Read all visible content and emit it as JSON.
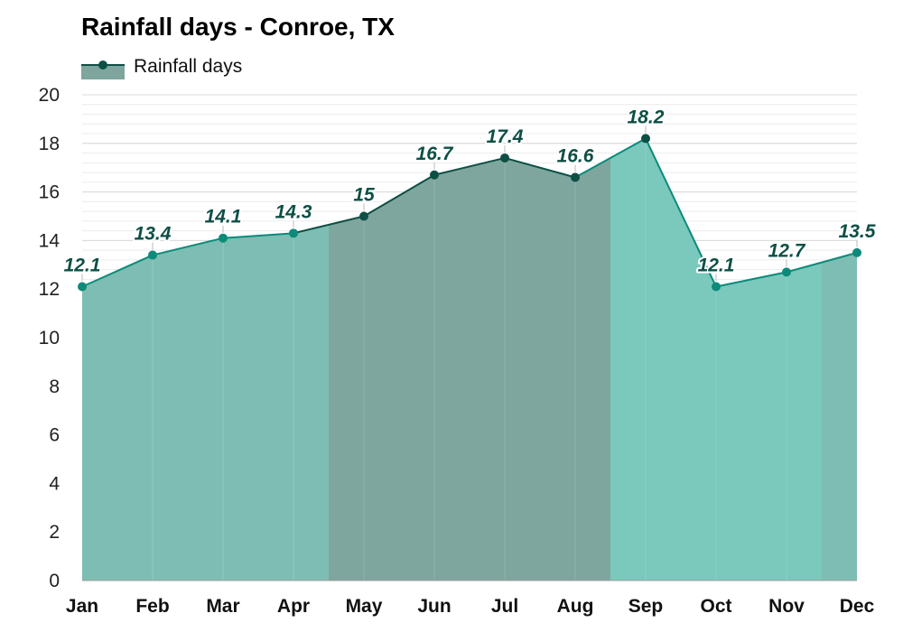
{
  "chart_data": {
    "type": "area",
    "title": "Rainfall days - Conroe, TX",
    "categories": [
      "Jan",
      "Feb",
      "Mar",
      "Apr",
      "May",
      "Jun",
      "Jul",
      "Aug",
      "Sep",
      "Oct",
      "Nov",
      "Dec"
    ],
    "series": [
      {
        "name": "Rainfall days",
        "values": [
          12.1,
          13.4,
          14.1,
          14.3,
          15,
          16.7,
          17.4,
          16.6,
          18.2,
          12.1,
          12.7,
          13.5
        ]
      }
    ],
    "ylim": [
      0,
      20
    ],
    "yticks": [
      0,
      2,
      4,
      6,
      8,
      10,
      12,
      14,
      16,
      18,
      20
    ],
    "grid": true,
    "legend_position": "top-left",
    "season_colors": {
      "spring": "#7ebdb3",
      "summer": "#7fa69e",
      "autumn": "#7bc8bc",
      "winter": "#7ebdb3"
    },
    "seasons": [
      "winter",
      "winter",
      "spring",
      "spring",
      "summer",
      "summer",
      "summer",
      "summer",
      "autumn",
      "autumn",
      "autumn",
      "winter"
    ],
    "line_color_light": "#0c8a7a",
    "line_color_dark": "#0d4f45"
  }
}
